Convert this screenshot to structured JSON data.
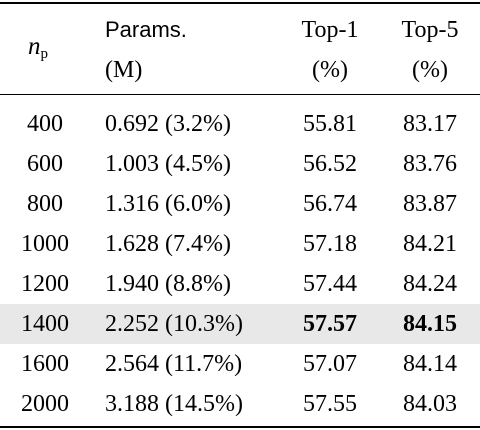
{
  "header": {
    "np_symbol": "n",
    "np_subscript": "p",
    "params_line1": "Params.",
    "params_line2": "(M)",
    "top1_line1": "Top-1",
    "top1_line2": "(%)",
    "top5_line1": "Top-5",
    "top5_line2": "(%)"
  },
  "rows": [
    {
      "np": "400",
      "params": "0.692 (3.2%)",
      "top1": "55.81",
      "top5": "83.17",
      "highlight": false,
      "bold": false
    },
    {
      "np": "600",
      "params": "1.003 (4.5%)",
      "top1": "56.52",
      "top5": "83.76",
      "highlight": false,
      "bold": false
    },
    {
      "np": "800",
      "params": "1.316 (6.0%)",
      "top1": "56.74",
      "top5": "83.87",
      "highlight": false,
      "bold": false
    },
    {
      "np": "1000",
      "params": "1.628 (7.4%)",
      "top1": "57.18",
      "top5": "84.21",
      "highlight": false,
      "bold": false
    },
    {
      "np": "1200",
      "params": "1.940 (8.8%)",
      "top1": "57.44",
      "top5": "84.24",
      "highlight": false,
      "bold": false
    },
    {
      "np": "1400",
      "params": "2.252 (10.3%)",
      "top1": "57.57",
      "top5": "84.15",
      "highlight": true,
      "bold": true
    },
    {
      "np": "1600",
      "params": "2.564 (11.7%)",
      "top1": "57.07",
      "top5": "84.14",
      "highlight": false,
      "bold": false
    },
    {
      "np": "2000",
      "params": "3.188 (14.5%)",
      "top1": "57.55",
      "top5": "84.03",
      "highlight": false,
      "bold": false
    }
  ]
}
